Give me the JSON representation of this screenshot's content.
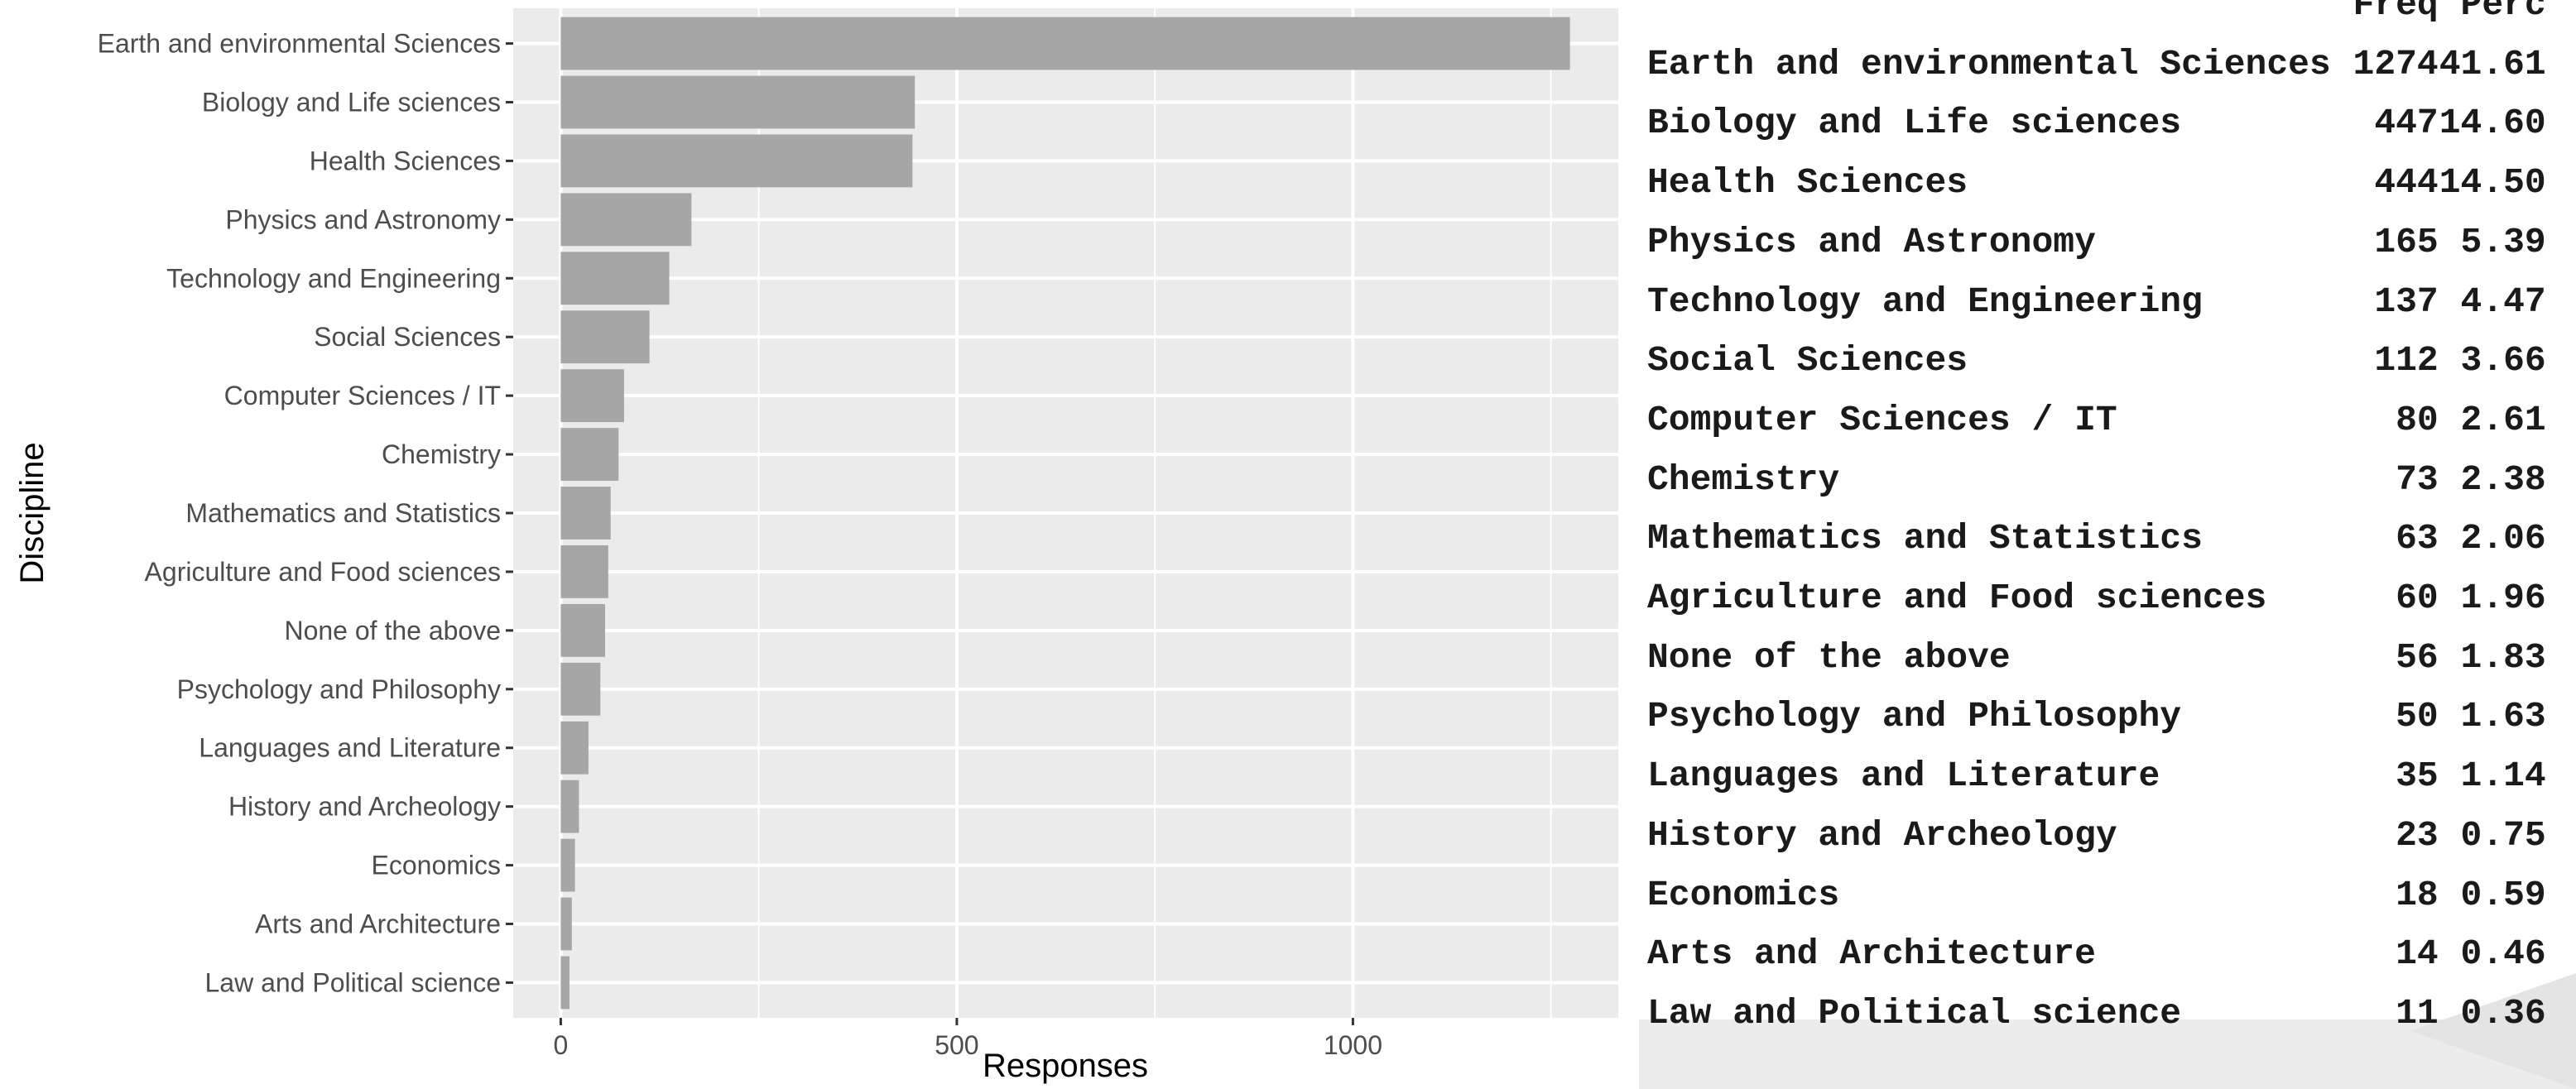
{
  "chart_data": {
    "type": "bar",
    "orientation": "horizontal",
    "categories": [
      "Earth and environmental Sciences",
      "Biology and Life sciences",
      "Health Sciences",
      "Physics and Astronomy",
      "Technology and Engineering",
      "Social Sciences",
      "Computer Sciences / IT",
      "Chemistry",
      "Mathematics and Statistics",
      "Agriculture and Food sciences",
      "None of the above",
      "Psychology and Philosophy",
      "Languages and Literature",
      "History and Archeology",
      "Economics",
      "Arts and Architecture",
      "Law and Political science"
    ],
    "values": [
      1274,
      447,
      444,
      165,
      137,
      112,
      80,
      73,
      63,
      60,
      56,
      50,
      35,
      23,
      18,
      14,
      11
    ],
    "xlabel": "Responses",
    "ylabel": "Discipline",
    "xlim": [
      -60,
      1335
    ],
    "xticks": [
      0,
      500,
      1000
    ],
    "xtick_labels": [
      "0",
      "500",
      "1000"
    ],
    "grid": true,
    "bar_color": "#a6a6a6",
    "panel_background": "#ebebeb",
    "grid_color": "#ffffff"
  },
  "table": {
    "headers": [
      "Freq",
      "Perc"
    ],
    "rows": [
      {
        "name": "Earth and environmental Sciences",
        "freq": "1274",
        "perc": "41.61"
      },
      {
        "name": "Biology and Life sciences",
        "freq": "447",
        "perc": "14.60"
      },
      {
        "name": "Health Sciences",
        "freq": "444",
        "perc": "14.50"
      },
      {
        "name": "Physics and Astronomy",
        "freq": "165",
        "perc": "5.39"
      },
      {
        "name": "Technology and Engineering",
        "freq": "137",
        "perc": "4.47"
      },
      {
        "name": "Social Sciences",
        "freq": "112",
        "perc": "3.66"
      },
      {
        "name": "Computer Sciences / IT",
        "freq": "80",
        "perc": "2.61"
      },
      {
        "name": "Chemistry",
        "freq": "73",
        "perc": "2.38"
      },
      {
        "name": "Mathematics and Statistics",
        "freq": "63",
        "perc": "2.06"
      },
      {
        "name": "Agriculture and Food sciences",
        "freq": "60",
        "perc": "1.96"
      },
      {
        "name": "None of the above",
        "freq": "56",
        "perc": "1.83"
      },
      {
        "name": "Psychology and Philosophy",
        "freq": "50",
        "perc": "1.63"
      },
      {
        "name": "Languages and Literature",
        "freq": "35",
        "perc": "1.14"
      },
      {
        "name": "History and Archeology",
        "freq": "23",
        "perc": "0.75"
      },
      {
        "name": "Economics",
        "freq": "18",
        "perc": "0.59"
      },
      {
        "name": "Arts and Architecture",
        "freq": "14",
        "perc": "0.46"
      },
      {
        "name": "Law and Political science",
        "freq": "11",
        "perc": "0.36"
      }
    ]
  }
}
